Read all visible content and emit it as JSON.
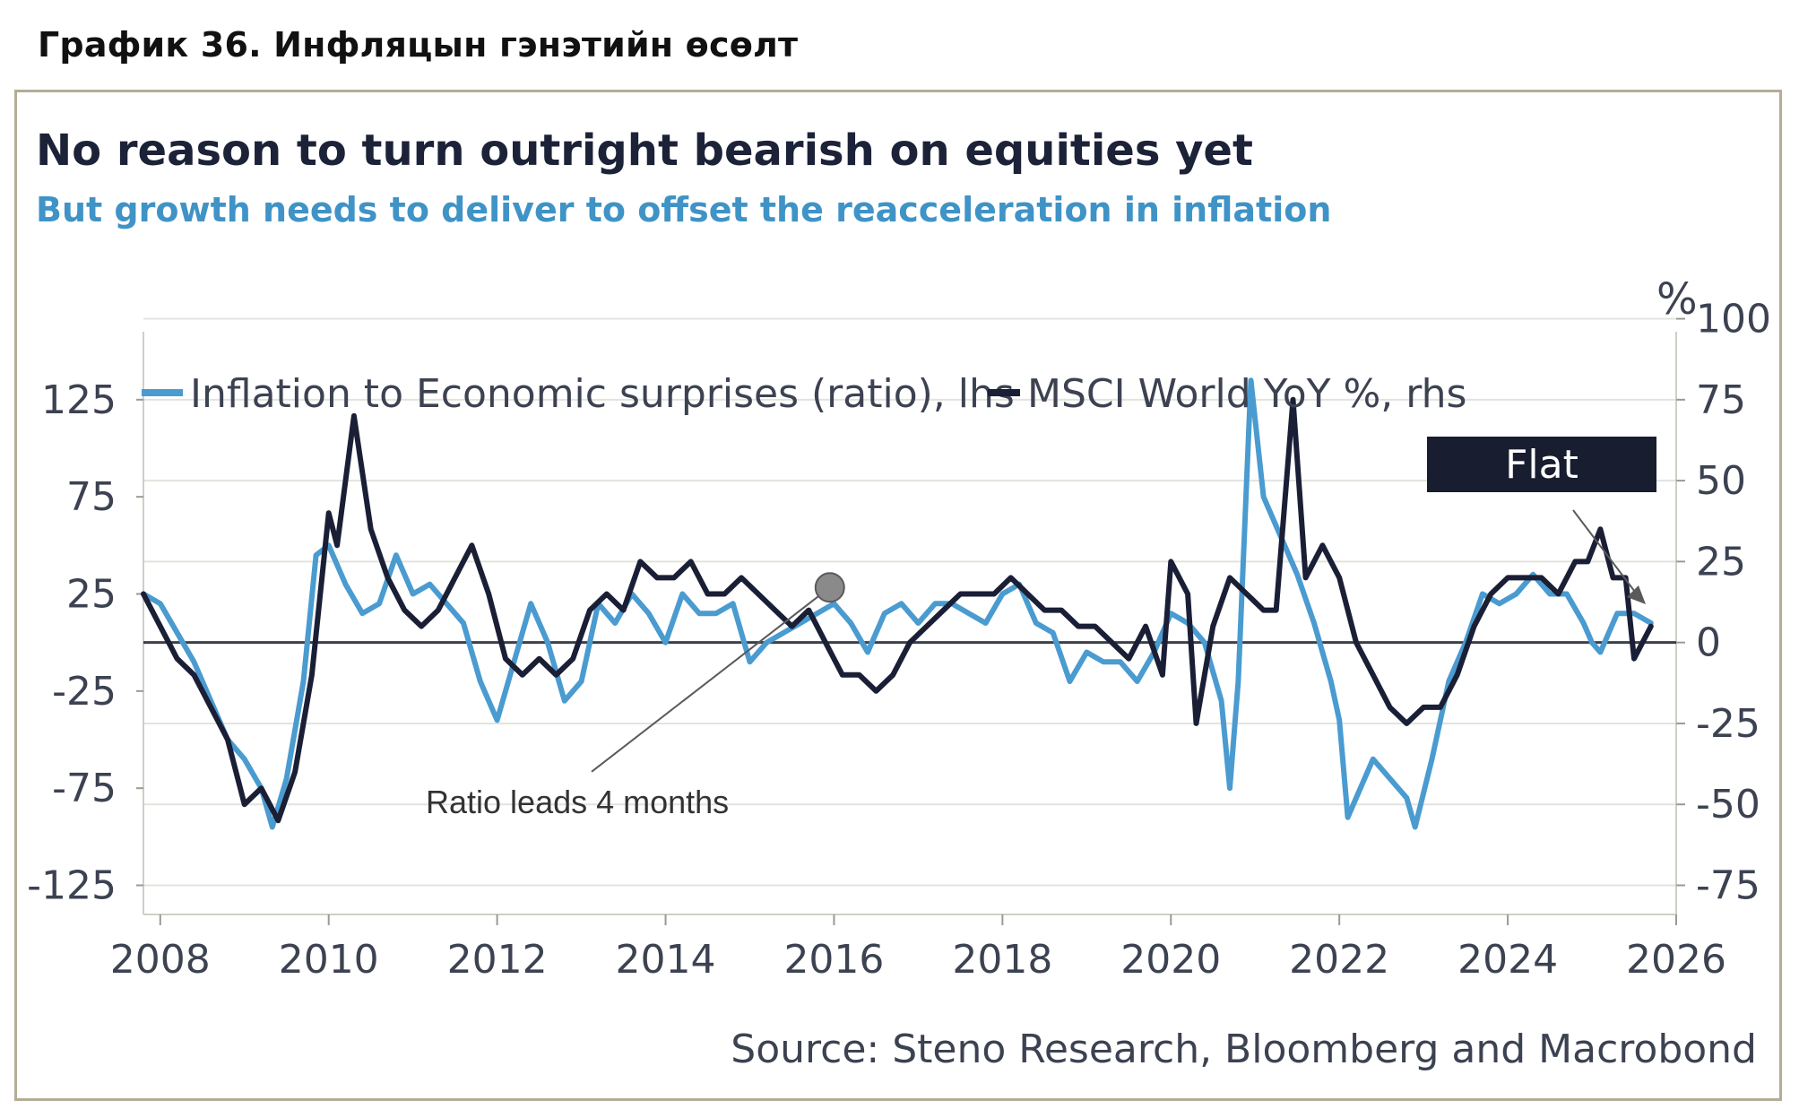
{
  "caption": "График 36. Инфляцын гэнэтийн өсөлт",
  "chart_data": {
    "type": "line",
    "title": "No reason to turn outright bearish on equities yet",
    "subtitle": "But growth needs to deliver to offset the reacceleration in inflation",
    "source": "Source: Steno Research, Bloomberg and Macrobond",
    "right_unit": "%",
    "xlabel": "",
    "x_ticks": [
      "2008",
      "2010",
      "2012",
      "2014",
      "2016",
      "2018",
      "2020",
      "2022",
      "2024",
      "2026"
    ],
    "xlim": [
      2007.8,
      2026.0
    ],
    "left_axis": {
      "ylim": [
        -140,
        160
      ],
      "ticks": [
        "125",
        "75",
        "25",
        "-25",
        "-75",
        "-125"
      ],
      "tick_values": [
        125,
        75,
        25,
        -25,
        -75,
        -125
      ]
    },
    "right_axis": {
      "ylim": [
        -84,
        96
      ],
      "ticks": [
        "100",
        "75",
        "50",
        "25",
        "0",
        "-25",
        "-50",
        "-75"
      ],
      "tick_values": [
        100,
        75,
        50,
        25,
        0,
        -25,
        -50,
        -75
      ]
    },
    "zero_line_rhs": 0,
    "series": [
      {
        "name": "Inflation to Economic surprises (ratio), lhs",
        "axis": "left",
        "color": "#4a9bd0",
        "x": [
          2007.8,
          2008.0,
          2008.2,
          2008.4,
          2008.6,
          2008.8,
          2009.0,
          2009.2,
          2009.33,
          2009.5,
          2009.7,
          2009.85,
          2010.0,
          2010.2,
          2010.4,
          2010.6,
          2010.8,
          2011.0,
          2011.2,
          2011.4,
          2011.6,
          2011.8,
          2012.0,
          2012.2,
          2012.4,
          2012.6,
          2012.8,
          2013.0,
          2013.2,
          2013.4,
          2013.6,
          2013.8,
          2014.0,
          2014.2,
          2014.4,
          2014.6,
          2014.8,
          2015.0,
          2015.2,
          2015.4,
          2015.6,
          2015.8,
          2016.0,
          2016.2,
          2016.4,
          2016.6,
          2016.8,
          2017.0,
          2017.2,
          2017.4,
          2017.6,
          2017.8,
          2018.0,
          2018.2,
          2018.4,
          2018.6,
          2018.8,
          2019.0,
          2019.2,
          2019.4,
          2019.6,
          2019.8,
          2020.0,
          2020.2,
          2020.4,
          2020.6,
          2020.7,
          2020.8,
          2020.95,
          2021.1,
          2021.3,
          2021.5,
          2021.7,
          2021.9,
          2022.0,
          2022.1,
          2022.2,
          2022.4,
          2022.6,
          2022.8,
          2022.9,
          2023.1,
          2023.3,
          2023.5,
          2023.7,
          2023.9,
          2024.1,
          2024.3,
          2024.5,
          2024.7,
          2024.9,
          2025.0,
          2025.1,
          2025.3,
          2025.5,
          2025.7
        ],
        "y": [
          25,
          20,
          5,
          -10,
          -30,
          -50,
          -60,
          -75,
          -95,
          -70,
          -20,
          45,
          50,
          30,
          15,
          20,
          45,
          25,
          30,
          20,
          10,
          -20,
          -40,
          -10,
          20,
          0,
          -30,
          -20,
          20,
          10,
          25,
          15,
          0,
          25,
          15,
          15,
          20,
          -10,
          0,
          5,
          10,
          15,
          20,
          10,
          -5,
          15,
          20,
          10,
          20,
          20,
          15,
          10,
          25,
          30,
          10,
          5,
          -20,
          -5,
          -10,
          -10,
          -20,
          -5,
          15,
          10,
          0,
          -30,
          -75,
          -20,
          135,
          75,
          55,
          35,
          10,
          -20,
          -40,
          -90,
          -80,
          -60,
          -70,
          -80,
          -95,
          -60,
          -20,
          0,
          25,
          20,
          25,
          35,
          25,
          25,
          10,
          0,
          -5,
          15,
          15,
          10
        ]
      },
      {
        "name": "MSCI World YoY %, rhs",
        "axis": "right",
        "color": "#1a1f36",
        "x": [
          2007.8,
          2008.0,
          2008.2,
          2008.4,
          2008.6,
          2008.8,
          2009.0,
          2009.2,
          2009.4,
          2009.6,
          2009.8,
          2010.0,
          2010.1,
          2010.2,
          2010.3,
          2010.5,
          2010.7,
          2010.9,
          2011.1,
          2011.3,
          2011.5,
          2011.7,
          2011.9,
          2012.1,
          2012.3,
          2012.5,
          2012.7,
          2012.9,
          2013.1,
          2013.3,
          2013.5,
          2013.7,
          2013.9,
          2014.1,
          2014.3,
          2014.5,
          2014.7,
          2014.9,
          2015.1,
          2015.3,
          2015.5,
          2015.7,
          2015.9,
          2016.1,
          2016.3,
          2016.5,
          2016.7,
          2016.9,
          2017.1,
          2017.3,
          2017.5,
          2017.7,
          2017.9,
          2018.1,
          2018.3,
          2018.5,
          2018.7,
          2018.9,
          2019.1,
          2019.3,
          2019.5,
          2019.7,
          2019.9,
          2020.0,
          2020.2,
          2020.3,
          2020.5,
          2020.7,
          2020.9,
          2021.1,
          2021.25,
          2021.45,
          2021.6,
          2021.8,
          2022.0,
          2022.2,
          2022.4,
          2022.6,
          2022.8,
          2023.0,
          2023.2,
          2023.4,
          2023.6,
          2023.8,
          2024.0,
          2024.2,
          2024.4,
          2024.6,
          2024.8,
          2024.95,
          2025.1,
          2025.25,
          2025.4,
          2025.5,
          2025.7
        ],
        "y": [
          15,
          5,
          -5,
          -10,
          -20,
          -30,
          -50,
          -45,
          -55,
          -40,
          -10,
          40,
          30,
          50,
          70,
          35,
          20,
          10,
          5,
          10,
          20,
          30,
          15,
          -5,
          -10,
          -5,
          -10,
          -5,
          10,
          15,
          10,
          25,
          20,
          20,
          25,
          15,
          15,
          20,
          15,
          10,
          5,
          10,
          0,
          -10,
          -10,
          -15,
          -10,
          0,
          5,
          10,
          15,
          15,
          15,
          20,
          15,
          10,
          10,
          5,
          5,
          0,
          -5,
          5,
          -10,
          25,
          15,
          -25,
          5,
          20,
          15,
          10,
          10,
          75,
          20,
          30,
          20,
          0,
          -10,
          -20,
          -25,
          -20,
          -20,
          -10,
          5,
          15,
          20,
          20,
          20,
          15,
          25,
          25,
          35,
          20,
          20,
          -5,
          5
        ]
      }
    ],
    "annotations": [
      {
        "text": "Ratio leads 4 months",
        "x": 2014.6,
        "y_lhs": -85
      },
      {
        "text": "Flat",
        "x": 2025.1,
        "y_lhs": 95
      }
    ],
    "highlight_marker": {
      "x": 2015.95,
      "y_rhs": 17
    }
  }
}
